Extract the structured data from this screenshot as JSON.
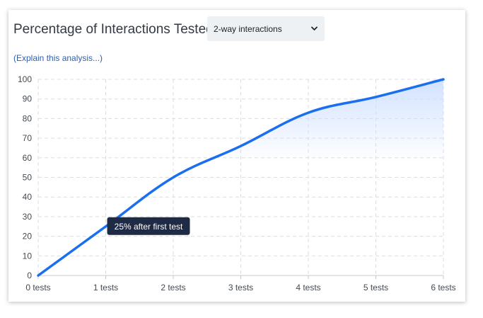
{
  "panel": {
    "title": "Percentage of Interactions Tested",
    "explain_link": "(Explain this analysis...)",
    "select": {
      "selected": "2-way interactions"
    }
  },
  "tooltip": {
    "text": "25% after first test",
    "anchor_index": 1
  },
  "colors": {
    "line": "#1a6ff0",
    "fill": "#cfe0ff",
    "grid": "#dddddd",
    "tooltip_bg": "#1f2b44"
  },
  "chart_data": {
    "type": "area",
    "title": "Percentage of Interactions Tested",
    "x": [
      "0 tests",
      "1 tests",
      "2 tests",
      "3 tests",
      "4 tests",
      "5 tests",
      "6 tests"
    ],
    "series": [
      {
        "values": [
          0,
          25,
          50,
          66,
          83,
          91,
          100
        ]
      }
    ],
    "yticks": [
      0,
      10,
      20,
      30,
      40,
      50,
      60,
      70,
      80,
      90,
      100
    ],
    "ylim": [
      0,
      100
    ],
    "grid": true,
    "legend": "none",
    "xlabel": "",
    "ylabel": ""
  }
}
